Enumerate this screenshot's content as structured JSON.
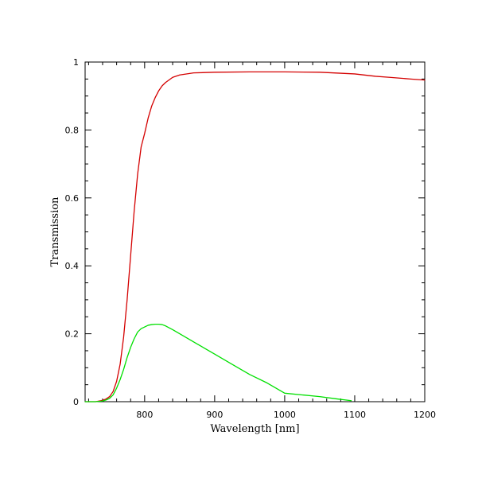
{
  "chart_data": {
    "type": "line",
    "title": "",
    "xlabel": "Wavelength [nm]",
    "ylabel": "Transmission",
    "xlim": [
      715,
      1200
    ],
    "ylim": [
      0,
      1
    ],
    "grid": false,
    "legend": "none",
    "x_ticks": [
      {
        "value": 800,
        "label": "800"
      },
      {
        "value": 900,
        "label": "900"
      },
      {
        "value": 1000,
        "label": "1000"
      },
      {
        "value": 1100,
        "label": "1100"
      },
      {
        "value": 1200,
        "label": "1200"
      }
    ],
    "y_ticks": [
      {
        "value": 0,
        "label": "0"
      },
      {
        "value": 0.2,
        "label": "0.2"
      },
      {
        "value": 0.4,
        "label": "0.4"
      },
      {
        "value": 0.6,
        "label": "0.6"
      },
      {
        "value": 0.8,
        "label": "0.8"
      },
      {
        "value": 1,
        "label": "1"
      }
    ],
    "series": [
      {
        "color": "#d40000",
        "points": [
          [
            715,
            0.0
          ],
          [
            730,
            0.0
          ],
          [
            740,
            0.004
          ],
          [
            745,
            0.008
          ],
          [
            750,
            0.015
          ],
          [
            755,
            0.03
          ],
          [
            760,
            0.06
          ],
          [
            765,
            0.11
          ],
          [
            770,
            0.19
          ],
          [
            775,
            0.3
          ],
          [
            780,
            0.43
          ],
          [
            785,
            0.56
          ],
          [
            790,
            0.67
          ],
          [
            795,
            0.75
          ],
          [
            800,
            0.79
          ],
          [
            805,
            0.835
          ],
          [
            810,
            0.87
          ],
          [
            815,
            0.895
          ],
          [
            820,
            0.915
          ],
          [
            825,
            0.93
          ],
          [
            830,
            0.94
          ],
          [
            840,
            0.955
          ],
          [
            850,
            0.962
          ],
          [
            870,
            0.968
          ],
          [
            900,
            0.97
          ],
          [
            950,
            0.971
          ],
          [
            1000,
            0.971
          ],
          [
            1050,
            0.97
          ],
          [
            1100,
            0.965
          ],
          [
            1130,
            0.958
          ],
          [
            1150,
            0.955
          ],
          [
            1180,
            0.95
          ],
          [
            1200,
            0.947
          ]
        ]
      },
      {
        "color": "#00e000",
        "points": [
          [
            715,
            0.0
          ],
          [
            730,
            0.0
          ],
          [
            740,
            0.002
          ],
          [
            745,
            0.005
          ],
          [
            750,
            0.01
          ],
          [
            755,
            0.02
          ],
          [
            760,
            0.04
          ],
          [
            765,
            0.065
          ],
          [
            770,
            0.095
          ],
          [
            775,
            0.13
          ],
          [
            780,
            0.16
          ],
          [
            785,
            0.185
          ],
          [
            790,
            0.205
          ],
          [
            795,
            0.215
          ],
          [
            800,
            0.22
          ],
          [
            805,
            0.225
          ],
          [
            810,
            0.227
          ],
          [
            815,
            0.228
          ],
          [
            820,
            0.228
          ],
          [
            825,
            0.227
          ],
          [
            830,
            0.223
          ],
          [
            840,
            0.212
          ],
          [
            850,
            0.2
          ],
          [
            875,
            0.17
          ],
          [
            900,
            0.14
          ],
          [
            925,
            0.11
          ],
          [
            950,
            0.08
          ],
          [
            975,
            0.055
          ],
          [
            1000,
            0.025
          ],
          [
            1025,
            0.02
          ],
          [
            1050,
            0.015
          ],
          [
            1075,
            0.008
          ],
          [
            1095,
            0.003
          ]
        ]
      }
    ]
  }
}
